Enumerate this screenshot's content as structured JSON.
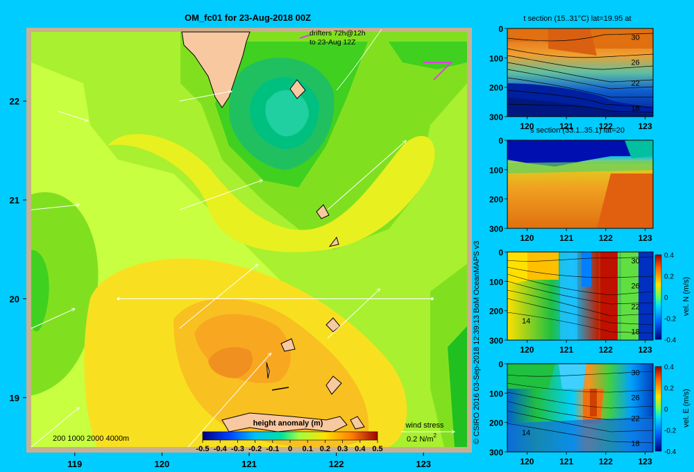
{
  "background_color": "#00ccff",
  "main_map": {
    "title": "OM_fc01 for 23-Aug-2018 00Z",
    "drifters_label_line1": "drifters 72h@12h",
    "drifters_label_line2": "to 23-Aug 12Z",
    "lon_ticks": [
      "119",
      "120",
      "121",
      "122",
      "123"
    ],
    "lat_ticks": [
      "22",
      "21",
      "20",
      "19"
    ],
    "depth_legend": "200  1000  2000  4000m",
    "colorbar_title": "height anomaly  (m)",
    "colorbar_ticks": [
      "-0.5",
      "-0.4",
      "-0.3",
      "-0.2",
      "-0.1",
      "0",
      "0.1",
      "0.2",
      "0.3",
      "0.4",
      "0.5"
    ],
    "wind_label": "wind stress",
    "wind_scale": "0.2 N/m",
    "wind_scale_exp": "2",
    "land_color": "#f8c8a0",
    "section_line_lat": 20,
    "section_line_lon": [
      119.5,
      123.1
    ]
  },
  "credit": "© CSIRO 2016    03-Sep-2018 12:39:13 BoM OceanMAPS v3",
  "panels": [
    {
      "title": "t section (15..31°C) lat=19.95 at",
      "colorbar": false,
      "contour_labels": [
        "30",
        "26",
        "22",
        "18"
      ]
    },
    {
      "title": "s section (33.1..35.1) lat=20",
      "colorbar": false,
      "contour_labels": []
    },
    {
      "title": "",
      "colorbar": true,
      "colorbar_label": "vel. N  (m/s)",
      "contour_labels": [
        "30",
        "26",
        "22",
        "18",
        "14"
      ]
    },
    {
      "title": "",
      "colorbar": true,
      "colorbar_label": "vel. E  (m/s)",
      "contour_labels": [
        "30",
        "26",
        "22",
        "18",
        "14"
      ]
    }
  ],
  "panel_x_ticks": [
    "120",
    "121",
    "122",
    "123"
  ],
  "panel_y_ticks": [
    "0",
    "100",
    "200",
    "300"
  ],
  "panel_cbar_ticks": [
    "0.4",
    "0.2",
    "0",
    "-0.2",
    "-0.4"
  ],
  "chart_data": [
    {
      "type": "heatmap",
      "title": "OM_fc01 for 23-Aug-2018 00Z",
      "variable": "height anomaly (m)",
      "xlim": [
        118.5,
        123.5
      ],
      "ylim": [
        18.5,
        22.7
      ],
      "color_range": [
        -0.5,
        0.5
      ],
      "field_summary": [
        {
          "region": "low centered near 121.5E 21.8N",
          "value": -0.15
        },
        {
          "region": "broad high near 120.9E 19.1N",
          "value": 0.25
        },
        {
          "region": "background",
          "value": 0.05
        }
      ],
      "wind_vectors": [
        {
          "lon": 118.8,
          "lat": 21.9,
          "dlon": 0.35,
          "dlat": -0.1
        },
        {
          "lon": 120.2,
          "lat": 22.0,
          "dlon": 0.6,
          "dlat": 0.1
        },
        {
          "lon": 118.5,
          "lat": 20.9,
          "dlon": 0.55,
          "dlat": 0.05
        },
        {
          "lon": 120.2,
          "lat": 20.9,
          "dlon": 0.95,
          "dlat": 0.3
        },
        {
          "lon": 121.9,
          "lat": 20.9,
          "dlon": 0.9,
          "dlat": 0.7
        },
        {
          "lon": 118.5,
          "lat": 19.7,
          "dlon": 0.5,
          "dlat": 0.2
        },
        {
          "lon": 120.2,
          "lat": 19.7,
          "dlon": 0.9,
          "dlat": 0.65
        },
        {
          "lon": 121.9,
          "lat": 19.6,
          "dlon": 0.6,
          "dlat": 0.5
        },
        {
          "lon": 118.5,
          "lat": 18.5,
          "dlon": 0.55,
          "dlat": 0.4
        },
        {
          "lon": 120.3,
          "lat": 18.5,
          "dlon": 0.95,
          "dlat": 0.95
        }
      ]
    },
    {
      "type": "heatmap",
      "title": "t section (15..31°C) lat=19.95 at",
      "xlim": [
        119.5,
        123.2
      ],
      "ylim": [
        300,
        0
      ],
      "xlabel": "",
      "ylabel": "",
      "contours": [
        30,
        26,
        22,
        18
      ]
    },
    {
      "type": "heatmap",
      "title": "s section (33.1..35.1) lat=20",
      "xlim": [
        119.5,
        123.2
      ],
      "ylim": [
        300,
        0
      ]
    },
    {
      "type": "heatmap",
      "title": "",
      "xlim": [
        119.5,
        123.2
      ],
      "ylim": [
        300,
        0
      ],
      "colorbar_label": "vel. N  (m/s)",
      "color_range": [
        -0.4,
        0.4
      ]
    },
    {
      "type": "heatmap",
      "title": "",
      "xlim": [
        119.5,
        123.2
      ],
      "ylim": [
        300,
        0
      ],
      "colorbar_label": "vel. E  (m/s)",
      "color_range": [
        -0.4,
        0.4
      ]
    }
  ]
}
